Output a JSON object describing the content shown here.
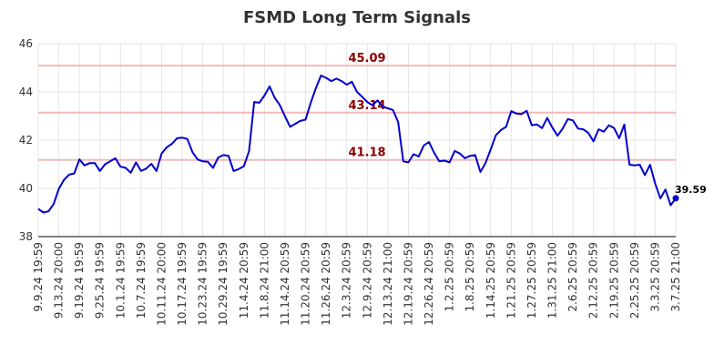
{
  "chart_data": {
    "type": "line",
    "title": "FSMD Long Term Signals",
    "xlabel": "",
    "ylabel": "",
    "ylim": [
      38,
      46
    ],
    "yticks": [
      38,
      40,
      42,
      44,
      46
    ],
    "grid": true,
    "legend": "none",
    "colors": {
      "line": "#0000cc",
      "signal_line": "#f4b8b8",
      "signal_text": "#8b0000",
      "grid": "#e6e6e6"
    },
    "x_tick_labels": [
      "9.9.24 19:59",
      "9.13.24 20:00",
      "9.19.24 19:59",
      "9.25.24 19:59",
      "10.1.24 19:59",
      "10.7.24 19:59",
      "10.11.24 20:00",
      "10.17.24 19:59",
      "10.23.24 19:59",
      "10.29.24 19:59",
      "11.4.24 20:59",
      "11.8.24 21:00",
      "11.14.24 20:59",
      "11.20.24 20:59",
      "11.26.24 20:59",
      "12.3.24 20:59",
      "12.9.24 20:59",
      "12.13.24 21:00",
      "12.19.24 20:59",
      "12.26.24 20:59",
      "1.2.25 20:59",
      "1.8.25 20:59",
      "1.14.25 20:59",
      "1.21.25 20:59",
      "1.27.25 20:59",
      "1.31.25 21:00",
      "2.6.25 20:59",
      "2.12.25 20:59",
      "2.19.25 20:59",
      "2.25.25 20:59",
      "3.3.25 20:59",
      "3.7.25 21:00"
    ],
    "signals": [
      {
        "label": "45.09",
        "value": 45.09
      },
      {
        "label": "43.14",
        "value": 43.14
      },
      {
        "label": "41.18",
        "value": 41.18
      }
    ],
    "last_value_label": "39.59",
    "values": [
      39.15,
      39.0,
      39.05,
      39.35,
      39.98,
      40.35,
      40.57,
      40.62,
      41.2,
      40.95,
      41.05,
      41.05,
      40.72,
      41.0,
      41.12,
      41.25,
      40.9,
      40.85,
      40.65,
      41.08,
      40.72,
      40.82,
      41.02,
      40.72,
      41.45,
      41.7,
      41.85,
      42.08,
      42.1,
      42.05,
      41.5,
      41.2,
      41.12,
      41.1,
      40.85,
      41.28,
      41.38,
      41.35,
      40.72,
      40.8,
      40.92,
      41.55,
      43.58,
      43.55,
      43.85,
      44.23,
      43.75,
      43.45,
      42.98,
      42.55,
      42.68,
      42.8,
      42.85,
      43.55,
      44.15,
      44.68,
      44.58,
      44.45,
      44.55,
      44.45,
      44.3,
      44.42,
      44.0,
      43.8,
      43.58,
      43.45,
      43.65,
      43.38,
      43.32,
      43.25,
      42.75,
      41.12,
      41.08,
      41.42,
      41.32,
      41.78,
      41.92,
      41.48,
      41.12,
      41.15,
      41.08,
      41.55,
      41.45,
      41.25,
      41.35,
      41.38,
      40.68,
      41.05,
      41.62,
      42.2,
      42.42,
      42.55,
      43.2,
      43.1,
      43.08,
      43.22,
      42.62,
      42.65,
      42.5,
      42.92,
      42.52,
      42.18,
      42.48,
      42.87,
      42.82,
      42.48,
      42.45,
      42.3,
      41.95,
      42.45,
      42.35,
      42.62,
      42.5,
      42.08,
      42.65,
      40.98,
      40.95,
      40.98,
      40.55,
      40.98,
      40.2,
      39.58,
      39.95,
      39.3,
      39.59
    ]
  }
}
